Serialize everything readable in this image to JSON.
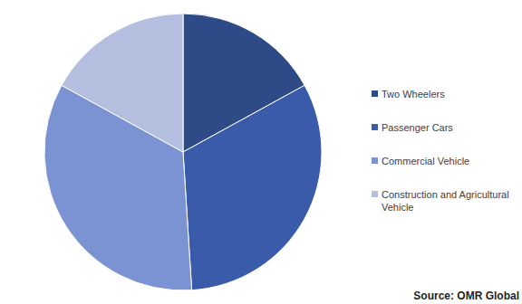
{
  "chart_data": {
    "type": "pie",
    "categories": [
      "Two Wheelers",
      "Passenger Cars",
      "Commercial Vehicle",
      "Construction and Agricultural Vehicle"
    ],
    "values": [
      17,
      32,
      34,
      17
    ],
    "colors": [
      "#2e4b87",
      "#3a5ba9",
      "#7b93d3",
      "#b4bfe0"
    ],
    "legend": "right",
    "source": "Source: OMR Global"
  }
}
